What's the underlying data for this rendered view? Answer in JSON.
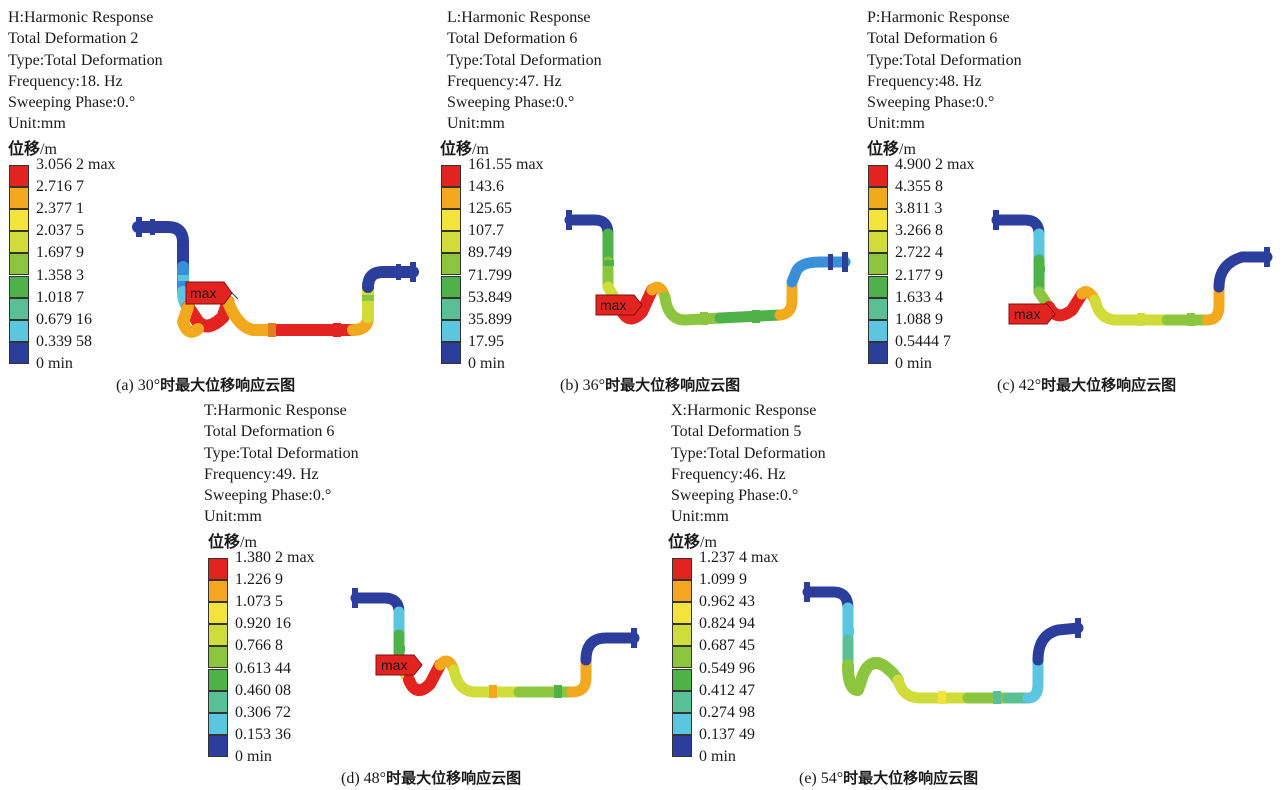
{
  "legend_colors": [
    "#2b3e9b",
    "#3a8fd9",
    "#5cc6e0",
    "#5bbf96",
    "#4fb248",
    "#8cc63f",
    "#cfdc3a",
    "#f2e43a",
    "#f3a91d",
    "#e32320"
  ],
  "panels": [
    {
      "id": "a",
      "header": [
        "H:Harmonic Response",
        "Total Deformation 2",
        "Type:Total Deformation",
        "Frequency:18. Hz",
        "Sweeping Phase:0.°",
        "Unit:mm"
      ],
      "legend_title": "位移",
      "legend_unit": "/m",
      "legend_labels": [
        "3.056 2 max",
        "2.716 7",
        "2.377 1",
        "2.037 5",
        "1.697 9",
        "1.358 3",
        "1.018 7",
        "0.679 16",
        "0.339 58",
        "0 min"
      ],
      "max_label": "max",
      "caption_prefix": "(a) 30°",
      "caption_cn": "时最大位移响应云图"
    },
    {
      "id": "b",
      "header": [
        "L:Harmonic Response",
        "Total Deformation 6",
        "Type:Total Deformation",
        "Frequency:47. Hz",
        "Sweeping Phase:0.°",
        "Unit:mm"
      ],
      "legend_title": "位移",
      "legend_unit": "/m",
      "legend_labels": [
        "161.55 max",
        "143.6",
        "125.65",
        "107.7",
        "89.749",
        "71.799",
        "53.849",
        "35.899",
        "17.95",
        "0 min"
      ],
      "max_label": "max",
      "caption_prefix": "(b) 36°",
      "caption_cn": "时最大位移响应云图"
    },
    {
      "id": "c",
      "header": [
        "P:Harmonic Response",
        "Total Deformation 6",
        "Type:Total Deformation",
        "Frequency:48. Hz",
        "Sweeping Phase:0.°",
        "Unit:mm"
      ],
      "legend_title": "位移",
      "legend_unit": "/m",
      "legend_labels": [
        "4.900 2 max",
        "4.355 8",
        "3.811 3",
        "3.266 8",
        "2.722 4",
        "2.177 9",
        "1.633 4",
        "1.088 9",
        "0.5444 7",
        "0 min"
      ],
      "max_label": "max",
      "caption_prefix": "(c) 42°",
      "caption_cn": "时最大位移响应云图"
    },
    {
      "id": "d",
      "header": [
        "T:Harmonic Response",
        "Total Deformation 6",
        "Type:Total Deformation",
        "Frequency:49. Hz",
        "Sweeping Phase:0.°",
        "Unit:mm"
      ],
      "legend_title": "位移",
      "legend_unit": "/m",
      "legend_labels": [
        "1.380 2 max",
        "1.226 9",
        "1.073 5",
        "0.920 16",
        "0.766 8",
        "0.613 44",
        "0.460 08",
        "0.306 72",
        "0.153 36",
        "0 min"
      ],
      "max_label": "max",
      "caption_prefix": "(d) 48°",
      "caption_cn": "时最大位移响应云图"
    },
    {
      "id": "e",
      "header": [
        "X:Harmonic Response",
        "Total Deformation 5",
        "Type:Total Deformation",
        "Frequency:46. Hz",
        "Sweeping Phase:0.°",
        "Unit:mm"
      ],
      "legend_title": "位移",
      "legend_unit": "/m",
      "legend_labels": [
        "1.237 4 max",
        "1.099 9",
        "0.962 43",
        "0.824 94",
        "0.687 45",
        "0.549 96",
        "0.412 47",
        "0.274 98",
        "0.137 49",
        "0 min"
      ],
      "max_label": "",
      "caption_prefix": "(e) 54°",
      "caption_cn": "时最大位移响应云图"
    }
  ]
}
